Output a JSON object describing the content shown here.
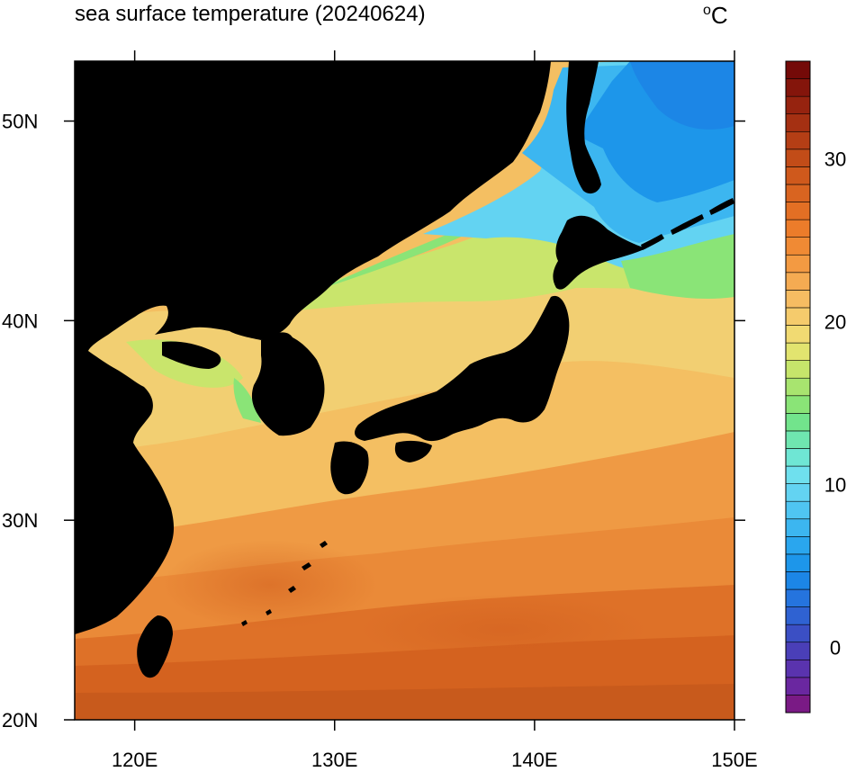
{
  "title": "sea surface temperature (20240624)",
  "unit": {
    "degree": "o",
    "letter": "C"
  },
  "map": {
    "lon_range": [
      117,
      150
    ],
    "lat_range": [
      20,
      53
    ],
    "lon_ticks": [
      {
        "value": 120,
        "label": "120E"
      },
      {
        "value": 130,
        "label": "130E"
      },
      {
        "value": 140,
        "label": "140E"
      },
      {
        "value": 150,
        "label": "150E"
      }
    ],
    "lat_ticks": [
      {
        "value": 20,
        "label": "20N"
      },
      {
        "value": 30,
        "label": "30N"
      },
      {
        "value": 40,
        "label": "40N"
      },
      {
        "value": 50,
        "label": "50N"
      }
    ],
    "land_color": "#000000"
  },
  "colorbar": {
    "min": -4,
    "max": 36,
    "step": 1,
    "labels": [
      {
        "value": 0,
        "label": "0"
      },
      {
        "value": 10,
        "label": "10"
      },
      {
        "value": 20,
        "label": "20"
      },
      {
        "value": 30,
        "label": "30"
      }
    ],
    "colors": [
      "#7a1a85",
      "#6a27a0",
      "#5a33ae",
      "#4a3fb8",
      "#3b4fc4",
      "#2f62d2",
      "#2574de",
      "#1c86e6",
      "#1d96ea",
      "#2aa6ee",
      "#3cb6f0",
      "#4fc5f2",
      "#63d3f2",
      "#6fe0ee",
      "#6fe6d4",
      "#6fe6b0",
      "#72e48c",
      "#8ae477",
      "#a8e46f",
      "#c6e56b",
      "#e2e46f",
      "#f1da72",
      "#f5cb6c",
      "#f6bc62",
      "#f5ab52",
      "#f39a42",
      "#f08a34",
      "#ec7c2a",
      "#e36f24",
      "#d96420",
      "#cf591c",
      "#c24c18",
      "#b43e15",
      "#a53012",
      "#96230f",
      "#84150b",
      "#740a08"
    ]
  },
  "land_labels": [],
  "islands_note": ""
}
